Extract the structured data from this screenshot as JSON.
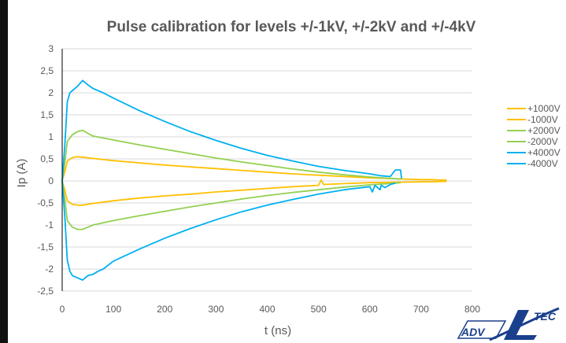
{
  "chart_data": {
    "type": "line",
    "title": "Pulse calibration for levels +/-1kV, +/-2kV and +/-4kV",
    "xlabel": "t (ns)",
    "ylabel": "Ip (A)",
    "xlim": [
      0,
      800
    ],
    "ylim": [
      -2.5,
      3
    ],
    "x_ticks": [
      0,
      100,
      200,
      300,
      400,
      500,
      600,
      700,
      800
    ],
    "x_tick_labels": [
      "0",
      "100",
      "200",
      "300",
      "400",
      "500",
      "600",
      "700",
      "800"
    ],
    "y_ticks": [
      3,
      2.5,
      2,
      1.5,
      1,
      0.5,
      0,
      -0.5,
      -1,
      -1.5,
      -2,
      -2.5
    ],
    "y_tick_labels": [
      "3",
      "2,5",
      "2",
      "1,5",
      "1",
      "0,5",
      "0",
      "-0,5",
      "-1",
      "-1,5",
      "-2",
      "-2,5"
    ],
    "grid": "horizontal",
    "legend_position": "right",
    "series": [
      {
        "name": "+1000V",
        "color": "#FFC000",
        "x": [
          0,
          5,
          10,
          20,
          30,
          40,
          60,
          100,
          150,
          200,
          250,
          300,
          350,
          400,
          450,
          500,
          550,
          600,
          650,
          700,
          720,
          740,
          750
        ],
        "y": [
          0,
          0.2,
          0.45,
          0.53,
          0.55,
          0.54,
          0.51,
          0.46,
          0.41,
          0.36,
          0.32,
          0.28,
          0.24,
          0.2,
          0.16,
          0.13,
          0.1,
          0.07,
          0.05,
          0.03,
          0.03,
          0.02,
          0.02
        ]
      },
      {
        "name": "-1000V",
        "color": "#FFC000",
        "x": [
          0,
          5,
          10,
          20,
          30,
          40,
          60,
          100,
          150,
          200,
          250,
          300,
          350,
          400,
          450,
          500,
          505,
          510,
          550,
          600,
          650,
          700,
          720,
          740,
          750
        ],
        "y": [
          0,
          -0.2,
          -0.45,
          -0.53,
          -0.55,
          -0.55,
          -0.51,
          -0.45,
          -0.39,
          -0.34,
          -0.3,
          -0.25,
          -0.21,
          -0.17,
          -0.13,
          -0.1,
          0.02,
          -0.08,
          -0.06,
          -0.04,
          -0.03,
          -0.02,
          -0.02,
          -0.01,
          -0.01
        ]
      },
      {
        "name": "+2000V",
        "color": "#92D050",
        "x": [
          0,
          5,
          10,
          20,
          30,
          40,
          50,
          60,
          100,
          150,
          200,
          250,
          300,
          350,
          400,
          450,
          500,
          550,
          600,
          650,
          660
        ],
        "y": [
          0,
          0.4,
          0.9,
          1.05,
          1.12,
          1.15,
          1.08,
          1.02,
          0.93,
          0.82,
          0.72,
          0.62,
          0.52,
          0.43,
          0.35,
          0.27,
          0.2,
          0.14,
          0.09,
          0.05,
          0.04
        ]
      },
      {
        "name": "-2000V",
        "color": "#92D050",
        "x": [
          0,
          5,
          10,
          20,
          30,
          40,
          50,
          60,
          100,
          150,
          200,
          250,
          300,
          350,
          400,
          450,
          500,
          550,
          600,
          650,
          660
        ],
        "y": [
          0,
          -0.4,
          -0.9,
          -1.05,
          -1.1,
          -1.1,
          -1.05,
          -1.0,
          -0.9,
          -0.79,
          -0.69,
          -0.59,
          -0.5,
          -0.41,
          -0.33,
          -0.26,
          -0.2,
          -0.14,
          -0.09,
          -0.05,
          -0.04
        ]
      },
      {
        "name": "+4000V",
        "color": "#00B0F0",
        "x": [
          0,
          5,
          10,
          15,
          20,
          30,
          40,
          50,
          60,
          80,
          100,
          150,
          200,
          250,
          300,
          350,
          400,
          450,
          500,
          550,
          600,
          620,
          640,
          650,
          660,
          662
        ],
        "y": [
          0,
          0.8,
          1.8,
          2.0,
          2.05,
          2.15,
          2.28,
          2.18,
          2.1,
          2.0,
          1.88,
          1.6,
          1.35,
          1.12,
          0.92,
          0.74,
          0.58,
          0.45,
          0.33,
          0.24,
          0.16,
          0.12,
          0.1,
          0.25,
          0.25,
          0.05
        ]
      },
      {
        "name": "-4000V",
        "color": "#00B0F0",
        "x": [
          0,
          5,
          10,
          15,
          20,
          30,
          40,
          50,
          60,
          70,
          80,
          100,
          150,
          200,
          250,
          300,
          350,
          400,
          450,
          500,
          550,
          600,
          605,
          610,
          620,
          622,
          630,
          640,
          650
        ],
        "y": [
          0,
          -0.8,
          -1.8,
          -2.05,
          -2.15,
          -2.2,
          -2.25,
          -2.15,
          -2.12,
          -2.05,
          -2.0,
          -1.82,
          -1.55,
          -1.3,
          -1.08,
          -0.88,
          -0.7,
          -0.55,
          -0.42,
          -0.3,
          -0.2,
          -0.13,
          -0.25,
          -0.1,
          -0.2,
          -0.1,
          -0.15,
          -0.08,
          -0.05
        ]
      }
    ]
  },
  "logo": {
    "text": "ADVEOTEC",
    "color": "#1a3f8c"
  }
}
